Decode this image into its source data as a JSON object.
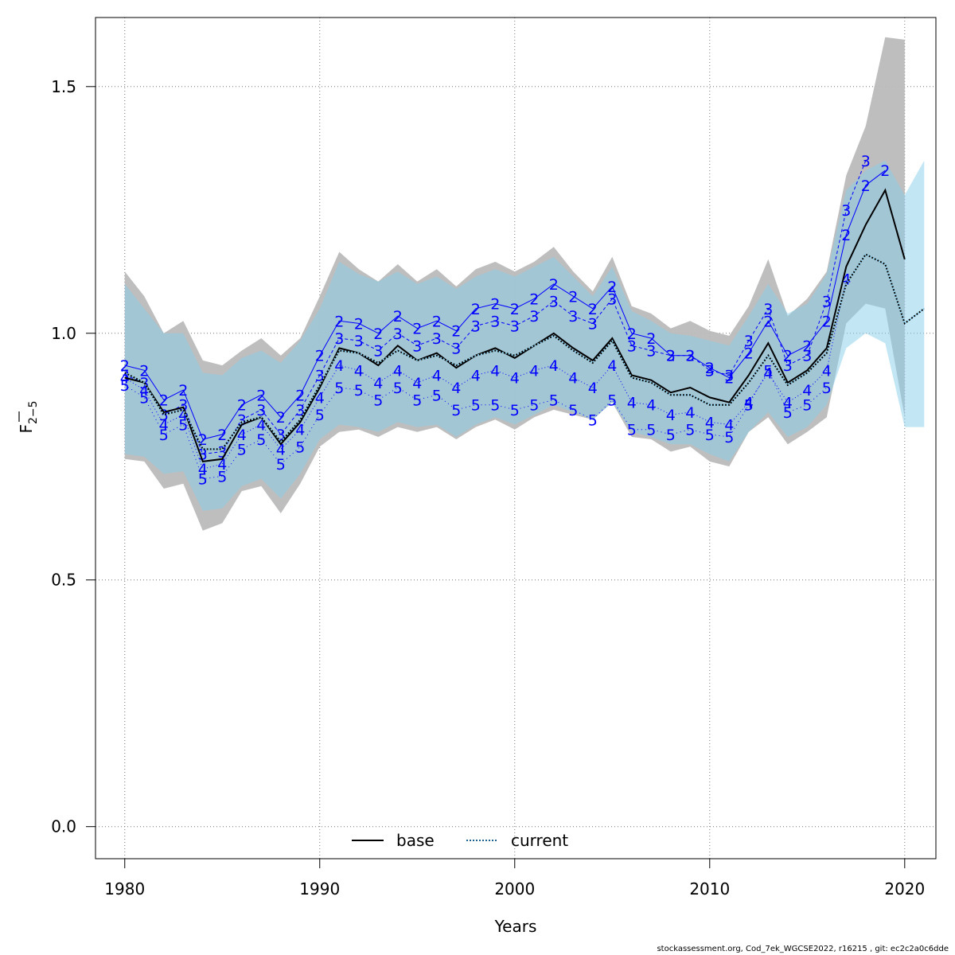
{
  "chart_data": {
    "type": "line",
    "title": "",
    "xlabel": "Years",
    "ylabel_main": "F",
    "ylabel_sub": "2−5",
    "xlim": [
      1978.5,
      2021.6
    ],
    "ylim": [
      -0.065,
      1.64
    ],
    "xticks": [
      1980,
      1990,
      2000,
      2010,
      2020
    ],
    "xtick_labels": [
      "1980",
      "1990",
      "2000",
      "2010",
      "2020"
    ],
    "yticks": [
      0.0,
      0.5,
      1.0,
      1.5
    ],
    "ytick_labels": [
      "0.0",
      "0.5",
      "1.0",
      "1.5"
    ],
    "grid": true,
    "legend": {
      "position": "bottom-center",
      "entries": [
        {
          "name": "base",
          "style": "solid",
          "color": "#000000"
        },
        {
          "name": "current",
          "style": "dotted",
          "color": "#1f5f8b"
        }
      ]
    },
    "colors": {
      "base_band": "#bbbbbb",
      "current_band": "#87ceeb",
      "retro": "#0000ff",
      "axis": "#000000",
      "grid": "#777777"
    },
    "x": [
      1980,
      1981,
      1982,
      1983,
      1984,
      1985,
      1986,
      1987,
      1988,
      1989,
      1990,
      1991,
      1992,
      1993,
      1994,
      1995,
      1996,
      1997,
      1998,
      1999,
      2000,
      2001,
      2002,
      2003,
      2004,
      2005,
      2006,
      2007,
      2008,
      2009,
      2010,
      2011,
      2012,
      2013,
      2014,
      2015,
      2016,
      2017,
      2018,
      2019,
      2020
    ],
    "series": [
      {
        "name": "base",
        "values": [
          0.91,
          0.9,
          0.84,
          0.85,
          0.74,
          0.745,
          0.815,
          0.83,
          0.775,
          0.82,
          0.89,
          0.97,
          0.96,
          0.935,
          0.975,
          0.945,
          0.96,
          0.93,
          0.955,
          0.97,
          0.95,
          0.975,
          1.0,
          0.97,
          0.945,
          0.99,
          0.915,
          0.905,
          0.88,
          0.89,
          0.87,
          0.86,
          0.915,
          0.98,
          0.9,
          0.925,
          0.97,
          1.135,
          1.22,
          1.29,
          1.15
        ],
        "lower": [
          0.745,
          0.74,
          0.685,
          0.695,
          0.6,
          0.615,
          0.68,
          0.69,
          0.635,
          0.695,
          0.77,
          0.8,
          0.805,
          0.79,
          0.81,
          0.8,
          0.81,
          0.785,
          0.81,
          0.825,
          0.805,
          0.83,
          0.845,
          0.835,
          0.825,
          0.86,
          0.79,
          0.785,
          0.76,
          0.77,
          0.74,
          0.73,
          0.8,
          0.83,
          0.775,
          0.8,
          0.83,
          1.02,
          1.06,
          1.05,
          0.83
        ],
        "upper": [
          1.125,
          1.075,
          1.0,
          1.025,
          0.945,
          0.935,
          0.965,
          0.99,
          0.955,
          0.99,
          1.075,
          1.165,
          1.13,
          1.105,
          1.14,
          1.105,
          1.13,
          1.095,
          1.13,
          1.145,
          1.125,
          1.145,
          1.175,
          1.125,
          1.085,
          1.155,
          1.055,
          1.04,
          1.01,
          1.025,
          1.005,
          0.995,
          1.055,
          1.15,
          1.035,
          1.07,
          1.125,
          1.32,
          1.42,
          1.6,
          1.595
        ]
      },
      {
        "name": "current",
        "x": [
          1980,
          1981,
          1982,
          1983,
          1984,
          1985,
          1986,
          1987,
          1988,
          1989,
          1990,
          1991,
          1992,
          1993,
          1994,
          1995,
          1996,
          1997,
          1998,
          1999,
          2000,
          2001,
          2002,
          2003,
          2004,
          2005,
          2006,
          2007,
          2008,
          2009,
          2010,
          2011,
          2012,
          2013,
          2014,
          2015,
          2016,
          2017,
          2018,
          2019,
          2020,
          2021
        ],
        "values": [
          0.92,
          0.9,
          0.835,
          0.845,
          0.765,
          0.765,
          0.82,
          0.83,
          0.78,
          0.825,
          0.895,
          0.965,
          0.96,
          0.94,
          0.965,
          0.945,
          0.955,
          0.935,
          0.955,
          0.965,
          0.955,
          0.975,
          0.995,
          0.965,
          0.94,
          0.985,
          0.91,
          0.9,
          0.875,
          0.875,
          0.855,
          0.855,
          0.9,
          0.955,
          0.895,
          0.92,
          0.96,
          1.1,
          1.16,
          1.14,
          1.02,
          1.05
        ],
        "lower": [
          0.755,
          0.75,
          0.715,
          0.72,
          0.64,
          0.645,
          0.69,
          0.705,
          0.665,
          0.715,
          0.785,
          0.815,
          0.81,
          0.8,
          0.82,
          0.81,
          0.815,
          0.79,
          0.815,
          0.83,
          0.815,
          0.835,
          0.855,
          0.84,
          0.825,
          0.86,
          0.8,
          0.79,
          0.775,
          0.775,
          0.755,
          0.74,
          0.8,
          0.84,
          0.79,
          0.81,
          0.855,
          0.97,
          1.0,
          0.98,
          0.81,
          0.81
        ],
        "upper": [
          1.1,
          1.05,
          1.0,
          1.0,
          0.92,
          0.915,
          0.95,
          0.965,
          0.94,
          0.985,
          1.05,
          1.145,
          1.12,
          1.105,
          1.125,
          1.1,
          1.115,
          1.09,
          1.115,
          1.13,
          1.115,
          1.135,
          1.155,
          1.115,
          1.075,
          1.135,
          1.045,
          1.025,
          1.0,
          0.995,
          0.985,
          0.975,
          1.035,
          1.1,
          1.04,
          1.06,
          1.12,
          1.29,
          1.33,
          1.35,
          1.28,
          1.35
        ]
      }
    ],
    "retro_peels": [
      {
        "label": "2",
        "end_year": 2019,
        "values": [
          0.935,
          0.925,
          0.865,
          0.885,
          0.785,
          0.795,
          0.855,
          0.875,
          0.83,
          0.875,
          0.955,
          1.025,
          1.02,
          1.0,
          1.035,
          1.01,
          1.025,
          1.005,
          1.05,
          1.06,
          1.05,
          1.07,
          1.1,
          1.075,
          1.05,
          1.095,
          1.0,
          0.99,
          0.955,
          0.955,
          0.93,
          0.91,
          0.96,
          1.025,
          0.955,
          0.975,
          1.025,
          1.2,
          1.3,
          1.33
        ]
      },
      {
        "label": "3",
        "end_year": 2018,
        "values": [
          0.915,
          0.9,
          0.835,
          0.855,
          0.755,
          0.76,
          0.825,
          0.845,
          0.795,
          0.845,
          0.915,
          0.99,
          0.985,
          0.965,
          1.0,
          0.975,
          0.99,
          0.97,
          1.015,
          1.025,
          1.015,
          1.035,
          1.065,
          1.035,
          1.02,
          1.07,
          0.975,
          0.965,
          0.955,
          0.955,
          0.925,
          0.915,
          0.985,
          1.05,
          0.935,
          0.955,
          1.065,
          1.25,
          1.35
        ]
      },
      {
        "label": "4",
        "end_year": 2017,
        "values": [
          0.91,
          0.885,
          0.815,
          0.835,
          0.725,
          0.735,
          0.795,
          0.815,
          0.765,
          0.805,
          0.87,
          0.935,
          0.925,
          0.9,
          0.925,
          0.9,
          0.915,
          0.89,
          0.915,
          0.925,
          0.91,
          0.925,
          0.935,
          0.91,
          0.89,
          0.935,
          0.86,
          0.855,
          0.835,
          0.84,
          0.82,
          0.815,
          0.86,
          0.92,
          0.86,
          0.885,
          0.925,
          1.11
        ]
      },
      {
        "label": "5",
        "end_year": 2016,
        "values": [
          0.895,
          0.87,
          0.795,
          0.815,
          0.705,
          0.71,
          0.765,
          0.785,
          0.735,
          0.77,
          0.835,
          0.89,
          0.885,
          0.865,
          0.89,
          0.865,
          0.875,
          0.845,
          0.855,
          0.855,
          0.845,
          0.855,
          0.865,
          0.845,
          0.825,
          0.865,
          0.805,
          0.805,
          0.795,
          0.805,
          0.795,
          0.79,
          0.855,
          0.925,
          0.84,
          0.855,
          0.89
        ]
      }
    ]
  },
  "footer_text": "stockassessment.org, Cod_7ek_WGCSE2022, r16215 , git: ec2c2a0c6dde"
}
